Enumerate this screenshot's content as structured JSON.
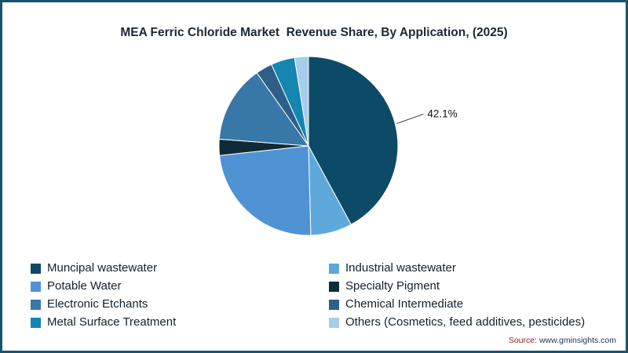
{
  "title": "MEA Ferric Chloride Market  Revenue Share, By Application, (2025)",
  "source": {
    "prefix": "Source:",
    "url": "www.gminsights.com"
  },
  "page": {
    "border_color": "#19536e",
    "background": "#ffffff"
  },
  "chart_data": {
    "type": "pie",
    "title": "MEA Ferric Chloride Market Revenue Share, By Application, (2025)",
    "unit": "%",
    "direction": "clockwise",
    "start_angle_deg": 0,
    "legend_position": "bottom",
    "legend_columns": 2,
    "categories": [
      "Muncipal wastewater",
      "Industrial wastewater",
      "Potable Water",
      "Specialty Pigment",
      "Electronic Etchants",
      "Chemical Intermediate",
      "Metal Surface Treatment",
      "Others (Cosmetics, feed additives, pesticides)"
    ],
    "values": [
      42.1,
      7.5,
      23.7,
      2.9,
      14.0,
      3.0,
      4.3,
      2.5
    ],
    "colors": [
      "#0c4a68",
      "#5fa8dc",
      "#4f93d4",
      "#0f2b38",
      "#3878a8",
      "#2e5f88",
      "#1486b0",
      "#a6cde9"
    ],
    "annotations": [
      {
        "slice_index": 0,
        "text": "42.1%"
      }
    ]
  }
}
